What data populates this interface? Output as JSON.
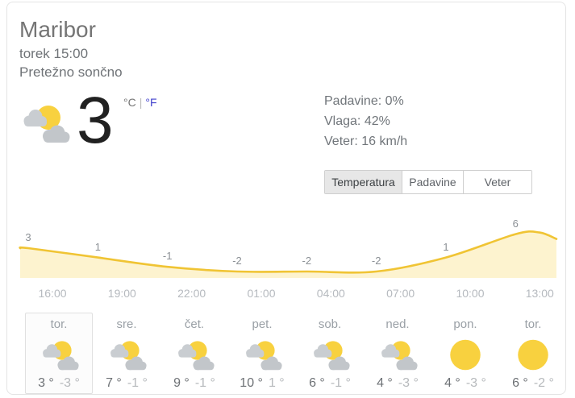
{
  "header": {
    "city": "Maribor",
    "datetime": "torek 15:00",
    "condition": "Pretežno sončno"
  },
  "current": {
    "temperature": "3",
    "unit_celsius": "°C",
    "unit_separator": "|",
    "unit_fahrenheit": "°F",
    "icon": "partly-cloudy"
  },
  "details": {
    "precipitation": "Padavine: 0%",
    "humidity": "Vlaga: 42%",
    "wind": "Veter: 16 km/h"
  },
  "tabs": {
    "items": [
      {
        "label": "Temperatura",
        "active": true
      },
      {
        "label": "Padavine",
        "active": false
      },
      {
        "label": "Veter",
        "active": false
      }
    ]
  },
  "chart_data": {
    "type": "area",
    "title": "Temperatura",
    "unit": "°C",
    "x": [
      "16:00",
      "19:00",
      "22:00",
      "01:00",
      "04:00",
      "07:00",
      "10:00",
      "13:00"
    ],
    "values": [
      3,
      1,
      -1,
      -2,
      -2,
      -2,
      1,
      6
    ],
    "point_labels": [
      "3",
      "1",
      "-1",
      "-2",
      "-2",
      "-2",
      "1",
      "6"
    ],
    "ylim": [
      -4,
      8
    ],
    "grid": false,
    "legend": false,
    "line_color": "#f0c434",
    "fill_color": "#fdf3cf"
  },
  "forecast": {
    "days": [
      {
        "name": "tor.",
        "icon": "partly-cloudy",
        "high": "3 °",
        "low": "-3 °",
        "selected": true
      },
      {
        "name": "sre.",
        "icon": "partly-cloudy",
        "high": "7 °",
        "low": "-1 °",
        "selected": false
      },
      {
        "name": "čet.",
        "icon": "partly-cloudy",
        "high": "9 °",
        "low": "-1 °",
        "selected": false
      },
      {
        "name": "pet.",
        "icon": "partly-cloudy",
        "high": "10 °",
        "low": "1 °",
        "selected": false
      },
      {
        "name": "sob.",
        "icon": "partly-cloudy",
        "high": "6 °",
        "low": "-1 °",
        "selected": false
      },
      {
        "name": "ned.",
        "icon": "partly-cloudy",
        "high": "4 °",
        "low": "-3 °",
        "selected": false
      },
      {
        "name": "pon.",
        "icon": "sunny",
        "high": "4 °",
        "low": "-3 °",
        "selected": false
      },
      {
        "name": "tor.",
        "icon": "sunny",
        "high": "6 °",
        "low": "-2 °",
        "selected": false
      }
    ]
  },
  "colors": {
    "accent_yellow": "#f8d13f",
    "chart_line": "#f0c434",
    "chart_fill": "#fdf3cf",
    "active_tab_bg": "#e7e7e7",
    "fahrenheit_link": "#4040cc"
  }
}
